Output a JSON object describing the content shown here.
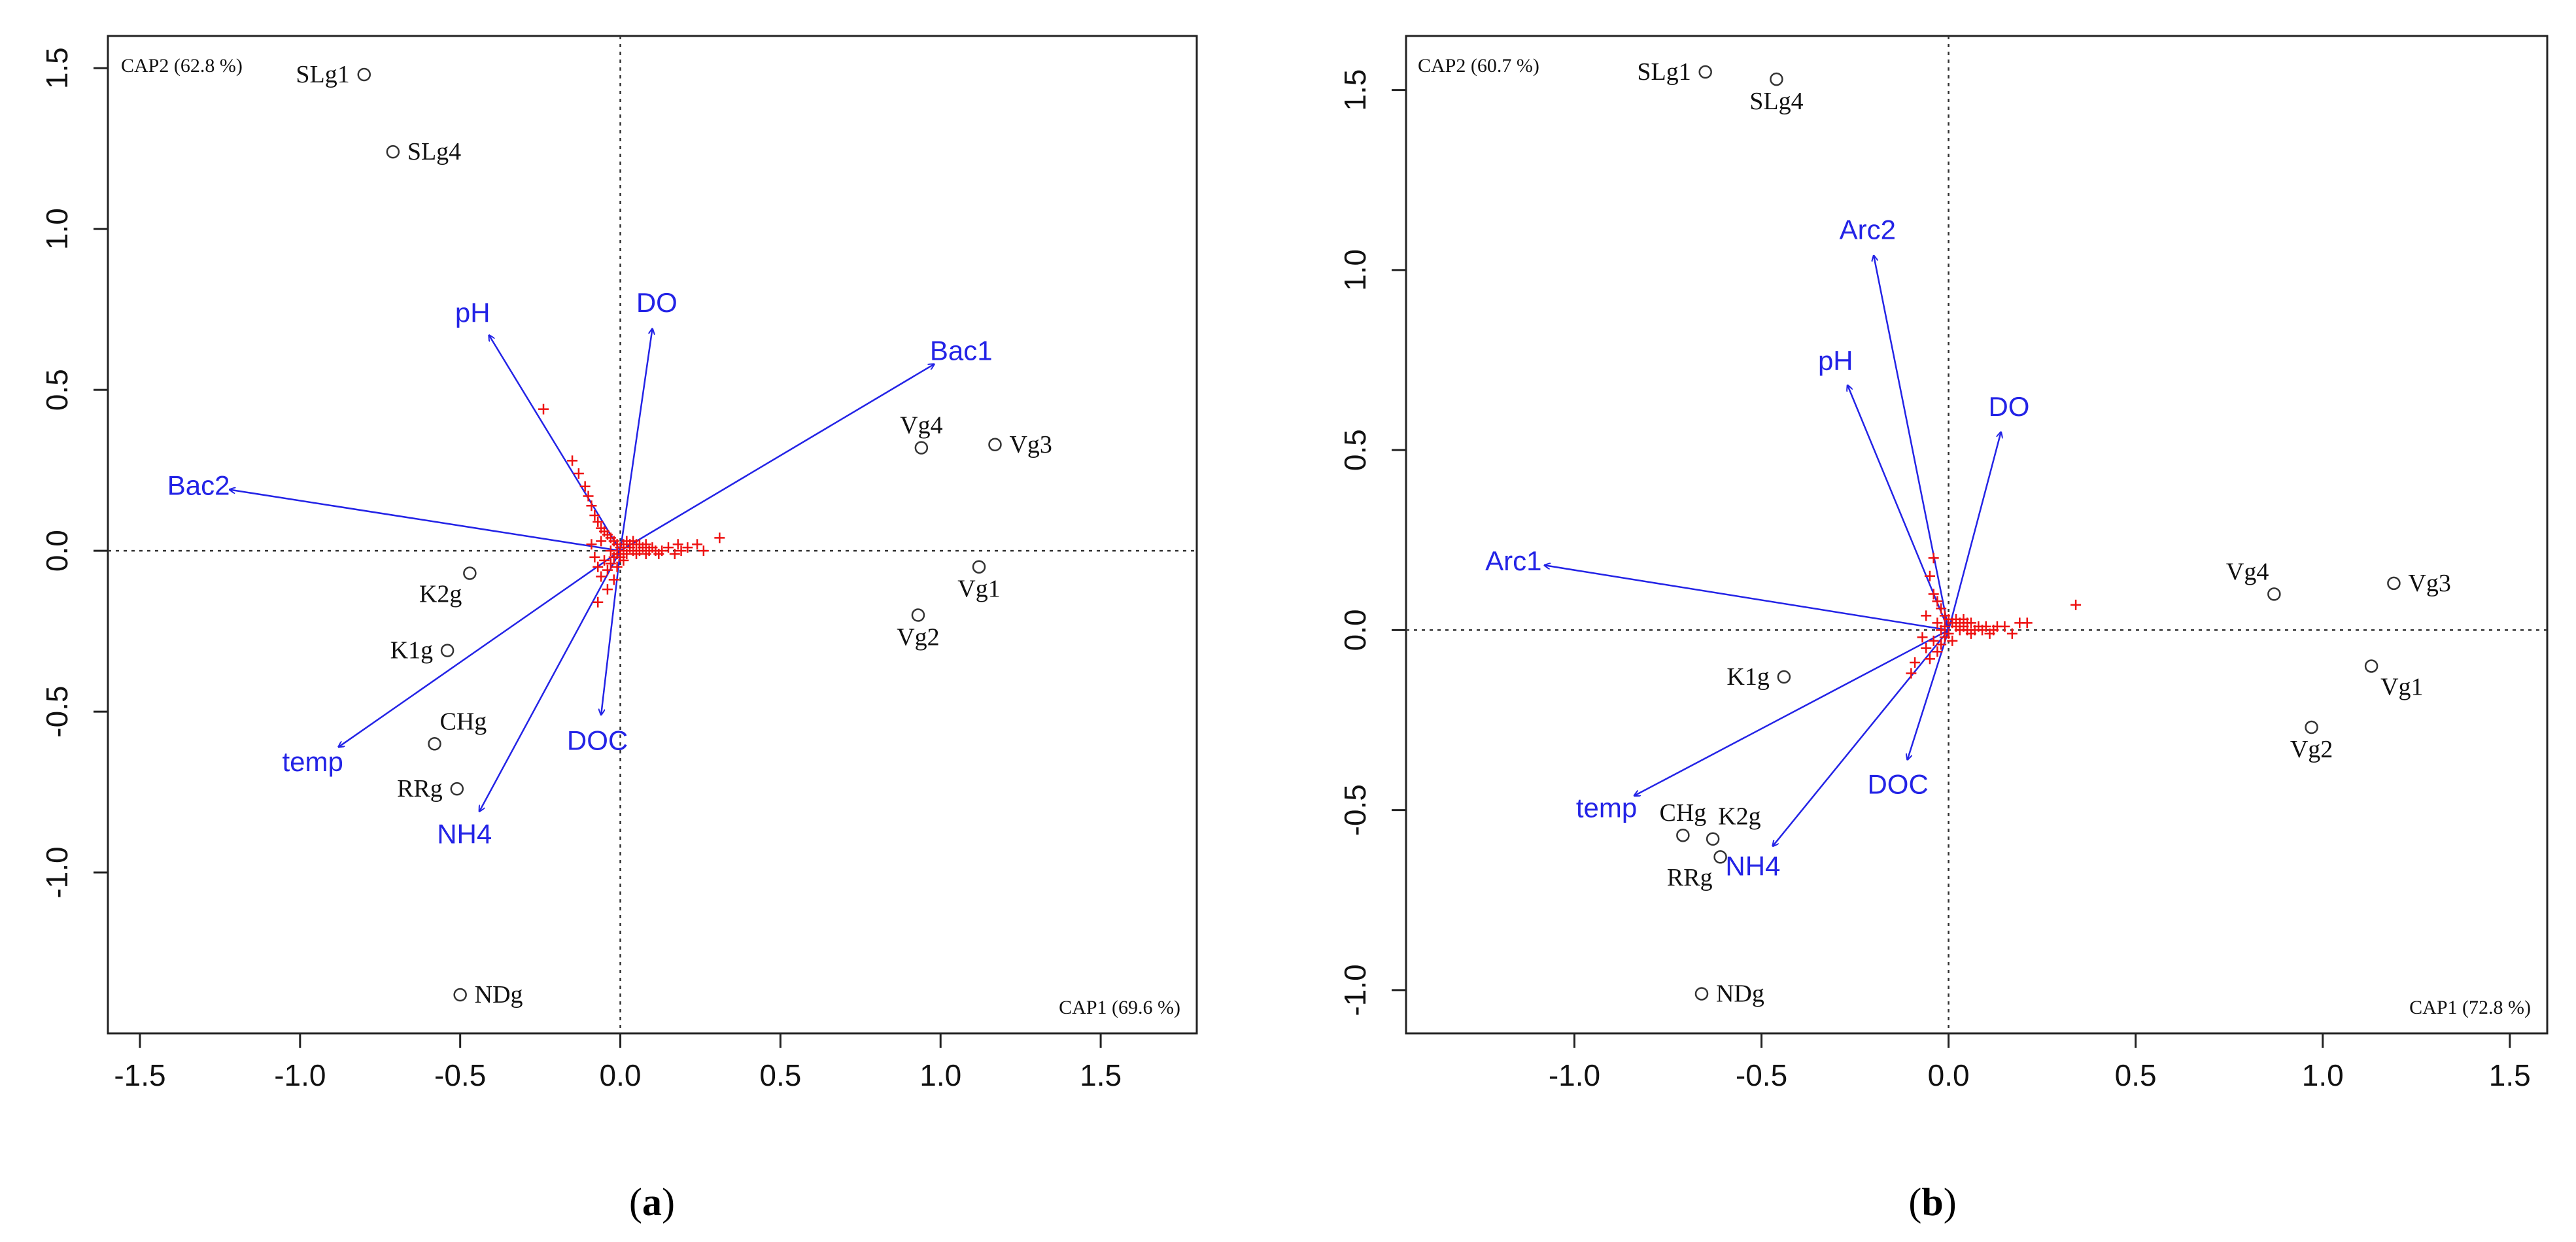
{
  "chart_data": [
    {
      "type": "scatter",
      "panel": "a",
      "caption": {
        "open": "(",
        "letter": "a",
        "close": ")"
      },
      "xlabel": "CAP1 (69.6 %)",
      "ylabel": "CAP2 (62.8 %)",
      "xlim": [
        -1.6,
        1.8
      ],
      "ylim": [
        -1.5,
        1.6
      ],
      "xticks": [
        -1.5,
        -1.0,
        -0.5,
        0.0,
        0.5,
        1.0,
        1.5
      ],
      "xtick_labels": [
        "-1.5",
        "-1.0",
        "-0.5",
        "0.0",
        "0.5",
        "1.0",
        "1.5"
      ],
      "yticks": [
        -1.0,
        -0.5,
        0.0,
        0.5,
        1.0,
        1.5
      ],
      "ytick_labels": [
        "-1.0",
        "-0.5",
        "0.0",
        "0.5",
        "1.0",
        "1.5"
      ],
      "sites": [
        {
          "name": "SLg1",
          "x": -0.8,
          "y": 1.48,
          "label_side": "left"
        },
        {
          "name": "SLg4",
          "x": -0.71,
          "y": 1.24,
          "label_side": "right"
        },
        {
          "name": "Vg4",
          "x": 0.94,
          "y": 0.32,
          "label_side": "above"
        },
        {
          "name": "Vg3",
          "x": 1.17,
          "y": 0.33,
          "label_side": "right"
        },
        {
          "name": "Vg1",
          "x": 1.12,
          "y": -0.05,
          "label_side": "below"
        },
        {
          "name": "Vg2",
          "x": 0.93,
          "y": -0.2,
          "label_side": "below"
        },
        {
          "name": "K2g",
          "x": -0.47,
          "y": -0.07,
          "label_side": "below-left"
        },
        {
          "name": "K1g",
          "x": -0.54,
          "y": -0.31,
          "label_side": "left"
        },
        {
          "name": "CHg",
          "x": -0.58,
          "y": -0.6,
          "label_side": "above-right"
        },
        {
          "name": "RRg",
          "x": -0.51,
          "y": -0.74,
          "label_side": "left"
        },
        {
          "name": "NDg",
          "x": -0.5,
          "y": -1.38,
          "label_side": "right"
        }
      ],
      "vectors": [
        {
          "name": "pH",
          "x": -0.41,
          "y": 0.67
        },
        {
          "name": "DO",
          "x": 0.1,
          "y": 0.69
        },
        {
          "name": "Bac1",
          "x": 0.98,
          "y": 0.58
        },
        {
          "name": "Bac2",
          "x": -1.22,
          "y": 0.19
        },
        {
          "name": "temp",
          "x": -0.88,
          "y": -0.61
        },
        {
          "name": "NH4",
          "x": -0.44,
          "y": -0.81
        },
        {
          "name": "DOC",
          "x": -0.06,
          "y": -0.51
        }
      ],
      "species_points": [
        [
          -0.24,
          0.44
        ],
        [
          -0.15,
          0.28
        ],
        [
          -0.13,
          0.24
        ],
        [
          -0.11,
          0.2
        ],
        [
          -0.1,
          0.17
        ],
        [
          -0.09,
          0.14
        ],
        [
          -0.08,
          0.11
        ],
        [
          -0.07,
          0.09
        ],
        [
          -0.06,
          0.07
        ],
        [
          -0.05,
          0.06
        ],
        [
          -0.04,
          0.05
        ],
        [
          -0.03,
          0.04
        ],
        [
          -0.02,
          0.03
        ],
        [
          -0.01,
          0.02
        ],
        [
          0.0,
          0.01
        ],
        [
          0.01,
          0.0
        ],
        [
          0.02,
          -0.01
        ],
        [
          0.03,
          0.01
        ],
        [
          0.04,
          0.0
        ],
        [
          0.05,
          -0.01
        ],
        [
          0.06,
          0.0
        ],
        [
          0.07,
          0.01
        ],
        [
          0.08,
          -0.01
        ],
        [
          0.09,
          0.0
        ],
        [
          0.1,
          0.01
        ],
        [
          0.11,
          0.0
        ],
        [
          0.12,
          -0.01
        ],
        [
          0.13,
          0.0
        ],
        [
          0.15,
          0.01
        ],
        [
          0.17,
          -0.01
        ],
        [
          0.18,
          0.02
        ],
        [
          0.19,
          0.0
        ],
        [
          0.21,
          0.01
        ],
        [
          0.24,
          0.02
        ],
        [
          0.26,
          0.0
        ],
        [
          0.31,
          0.04
        ],
        [
          -0.02,
          -0.02
        ],
        [
          -0.03,
          -0.04
        ],
        [
          -0.04,
          -0.06
        ],
        [
          -0.05,
          -0.03
        ],
        [
          -0.06,
          -0.08
        ],
        [
          -0.07,
          -0.05
        ],
        [
          -0.04,
          -0.12
        ],
        [
          -0.07,
          -0.16
        ],
        [
          -0.02,
          -0.09
        ],
        [
          0.01,
          -0.03
        ],
        [
          -0.01,
          -0.05
        ],
        [
          0.02,
          0.03
        ],
        [
          0.03,
          0.02
        ],
        [
          -0.08,
          -0.02
        ],
        [
          -0.09,
          0.02
        ],
        [
          -0.06,
          0.03
        ],
        [
          0.05,
          0.02
        ],
        [
          0.0,
          -0.02
        ],
        [
          -0.03,
          0.0
        ],
        [
          0.01,
          0.02
        ],
        [
          0.04,
          0.03
        ],
        [
          -0.01,
          -0.01
        ],
        [
          0.06,
          0.02
        ],
        [
          0.08,
          0.02
        ]
      ]
    },
    {
      "type": "scatter",
      "panel": "b",
      "caption": {
        "open": "(",
        "letter": "b",
        "close": ")"
      },
      "xlabel": "CAP1 (72.8 %)",
      "ylabel": "CAP2 (60.7 %)",
      "xlim": [
        -1.45,
        1.6
      ],
      "ylim": [
        -1.12,
        1.65
      ],
      "xticks": [
        -1.0,
        -0.5,
        0.0,
        0.5,
        1.0,
        1.5
      ],
      "xtick_labels": [
        "-1.0",
        "-0.5",
        "0.0",
        "0.5",
        "1.0",
        "1.5"
      ],
      "yticks": [
        -1.0,
        -0.5,
        0.0,
        0.5,
        1.0,
        1.5
      ],
      "ytick_labels": [
        "-1.0",
        "-0.5",
        "0.0",
        "0.5",
        "1.0",
        "1.5"
      ],
      "sites": [
        {
          "name": "SLg1",
          "x": -0.65,
          "y": 1.55,
          "label_side": "left"
        },
        {
          "name": "SLg4",
          "x": -0.46,
          "y": 1.53,
          "label_side": "below"
        },
        {
          "name": "Vg4",
          "x": 0.87,
          "y": 0.1,
          "label_side": "above-left"
        },
        {
          "name": "Vg3",
          "x": 1.19,
          "y": 0.13,
          "label_side": "right"
        },
        {
          "name": "Vg1",
          "x": 1.13,
          "y": -0.1,
          "label_side": "below-right"
        },
        {
          "name": "Vg2",
          "x": 0.97,
          "y": -0.27,
          "label_side": "below"
        },
        {
          "name": "K1g",
          "x": -0.44,
          "y": -0.13,
          "label_side": "left"
        },
        {
          "name": "CHg",
          "x": -0.71,
          "y": -0.57,
          "label_side": "above"
        },
        {
          "name": "K2g",
          "x": -0.63,
          "y": -0.58,
          "label_side": "above-right"
        },
        {
          "name": "RRg",
          "x": -0.61,
          "y": -0.63,
          "label_side": "below-left"
        },
        {
          "name": "NDg",
          "x": -0.66,
          "y": -1.01,
          "label_side": "right"
        }
      ],
      "vectors": [
        {
          "name": "Arc1",
          "x": -1.08,
          "y": 0.18
        },
        {
          "name": "Arc2",
          "x": -0.2,
          "y": 1.04
        },
        {
          "name": "pH",
          "x": -0.27,
          "y": 0.68
        },
        {
          "name": "DO",
          "x": 0.14,
          "y": 0.55
        },
        {
          "name": "temp",
          "x": -0.84,
          "y": -0.46
        },
        {
          "name": "NH4",
          "x": -0.47,
          "y": -0.6
        },
        {
          "name": "DOC",
          "x": -0.11,
          "y": -0.36
        }
      ],
      "species_points": [
        [
          -0.04,
          0.2
        ],
        [
          -0.05,
          0.15
        ],
        [
          -0.04,
          0.1
        ],
        [
          -0.03,
          0.08
        ],
        [
          -0.02,
          0.06
        ],
        [
          -0.01,
          0.04
        ],
        [
          0.0,
          0.03
        ],
        [
          0.01,
          0.02
        ],
        [
          0.02,
          0.01
        ],
        [
          0.03,
          0.0
        ],
        [
          0.04,
          0.01
        ],
        [
          0.05,
          0.0
        ],
        [
          0.06,
          -0.01
        ],
        [
          0.07,
          0.0
        ],
        [
          0.08,
          0.01
        ],
        [
          0.09,
          0.0
        ],
        [
          0.1,
          0.01
        ],
        [
          0.11,
          -0.01
        ],
        [
          0.12,
          0.0
        ],
        [
          0.13,
          0.01
        ],
        [
          0.15,
          0.01
        ],
        [
          0.17,
          -0.01
        ],
        [
          0.19,
          0.02
        ],
        [
          0.21,
          0.02
        ],
        [
          0.34,
          0.07
        ],
        [
          -0.01,
          -0.02
        ],
        [
          -0.02,
          -0.04
        ],
        [
          -0.03,
          -0.06
        ],
        [
          -0.04,
          -0.03
        ],
        [
          -0.05,
          -0.08
        ],
        [
          -0.06,
          -0.05
        ],
        [
          -0.07,
          -0.02
        ],
        [
          -0.09,
          -0.09
        ],
        [
          -0.1,
          -0.12
        ],
        [
          0.02,
          0.03
        ],
        [
          0.03,
          0.02
        ],
        [
          -0.03,
          0.02
        ],
        [
          -0.02,
          0.0
        ],
        [
          0.0,
          -0.01
        ],
        [
          0.01,
          -0.03
        ],
        [
          0.04,
          0.03
        ],
        [
          -0.01,
          0.01
        ],
        [
          0.05,
          0.02
        ],
        [
          0.06,
          0.02
        ],
        [
          -0.06,
          0.04
        ]
      ]
    }
  ]
}
